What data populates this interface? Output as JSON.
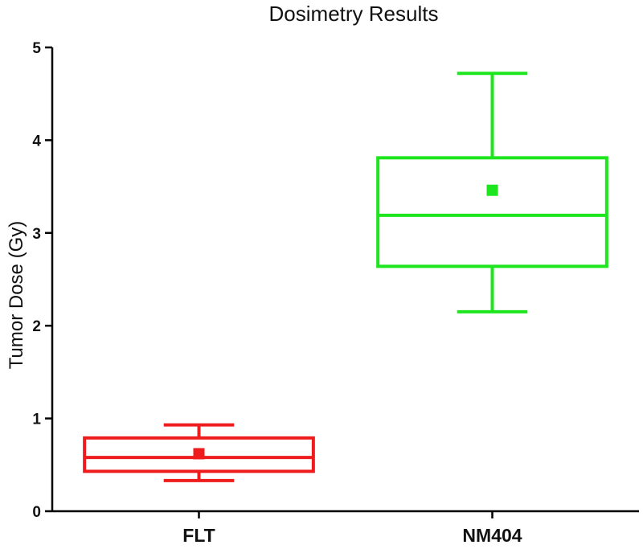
{
  "chart_data": {
    "type": "box",
    "title": "Dosimetry Results",
    "xlabel": "",
    "ylabel": "Tumor Dose (Gy)",
    "ylim": [
      0,
      5
    ],
    "yticks": [
      "0",
      "1",
      "2",
      "3",
      "4",
      "5"
    ],
    "grid": false,
    "categories": [
      "FLT",
      "NM404"
    ],
    "series": [
      {
        "name": "FLT",
        "color": "#ee1c1c",
        "whisker_low": 0.33,
        "q1": 0.43,
        "median": 0.58,
        "q3": 0.79,
        "whisker_high": 0.93,
        "mean": 0.62
      },
      {
        "name": "NM404",
        "color": "#1ee61e",
        "whisker_low": 2.15,
        "q1": 2.64,
        "median": 3.19,
        "q3": 3.81,
        "whisker_high": 4.72,
        "mean": 3.46
      }
    ]
  }
}
